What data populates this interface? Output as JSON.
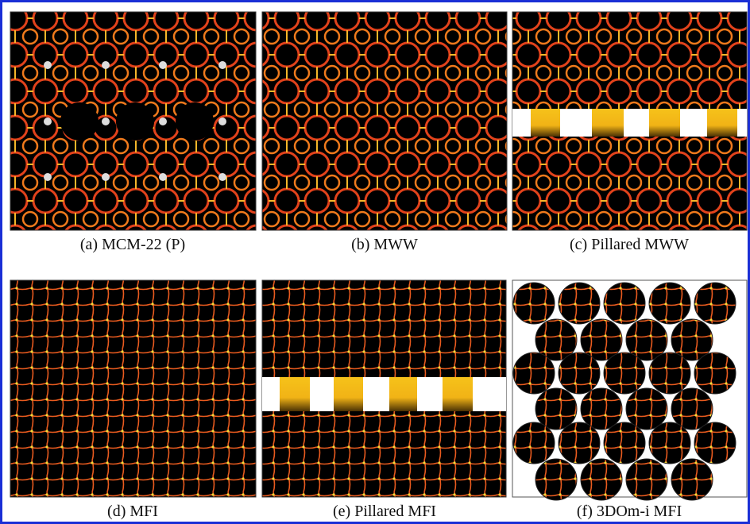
{
  "panels": [
    {
      "caption": "(a)  MCM-22 (P)"
    },
    {
      "caption": "(b) MWW"
    },
    {
      "caption": "(c) Pillared MWW"
    },
    {
      "caption": "(d) MFI"
    },
    {
      "caption": "(e) Pillared MFI"
    },
    {
      "caption": "(f) 3DOm-i MFI"
    }
  ]
}
